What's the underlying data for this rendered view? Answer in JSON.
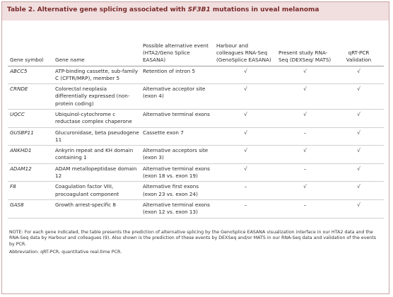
{
  "table_title_prefix": "Table 2.  Alternative gene splicing associated with ",
  "table_title_gene": "SF3B1",
  "table_title_suffix": " mutations in uveal melanoma",
  "headers": {
    "gene_symbol": "Gene symbol",
    "gene_name": "Gene name",
    "possible_event": "Possible alternative event (HTA2/Geno Splice EASANA)",
    "harbour": "Harbour and colleagues RNA-Seq (GenoSplice EASANA)",
    "present": "Present study RNA-Seq (DEXSeq/ MATS)",
    "qrt": "qRT-PCR Validation"
  },
  "rows": [
    {
      "symbol": "ABCC5",
      "name": "ATP-binding cassette, sub-family C (CFTR/MRP), member 5",
      "event": "Retention of intron 5",
      "harbour": "√",
      "present": "√",
      "qrt": "√"
    },
    {
      "symbol": "CRNDE",
      "name": "Colorectal neoplasia differentially expressed (non-protein coding)",
      "event": "Alternative acceptor site (exon 4)",
      "harbour": "√",
      "present": "√",
      "qrt": "√"
    },
    {
      "symbol": "UQCC",
      "name": "Ubiquinol-cytochrome c reductase complex chaperone",
      "event": "Alternative terminal exons",
      "harbour": "√",
      "present": "√",
      "qrt": "√"
    },
    {
      "symbol": "GUSBP11",
      "name": "Glucuronidase, beta pseudogene 11",
      "event": "Cassette exon 7",
      "harbour": "√",
      "present": "–",
      "qrt": "√"
    },
    {
      "symbol": "ANKHD1",
      "name": "Ankyrin repeat and KH domain containing 1",
      "event": "Alternative acceptors site (exon 3)",
      "harbour": "√",
      "present": "√",
      "qrt": "√"
    },
    {
      "symbol": "ADAM12",
      "name": "ADAM metallopeptidase domain 12",
      "event": "Alternative terminal exons (exon 18 vs. exon 19)",
      "harbour": "√",
      "present": "–",
      "qrt": "√"
    },
    {
      "symbol": "F8",
      "name": "Coagulation factor VIII, procoagulant component",
      "event": "Alternative first exons (exon 23 vs. exon 24)",
      "harbour": "–",
      "present": "√",
      "qrt": "√"
    },
    {
      "symbol": "GAS8",
      "name": "Growth arrest-specific 8",
      "event": "Alternative terminal exons (exon 12 vs. exon 13)",
      "harbour": "–",
      "present": "–",
      "qrt": "√"
    }
  ],
  "note": "NOTE: For each gene indicated, the table presents the prediction of alternative splicing by the GenoSplice EASANA visualization interface in our HTA2 data and the RNA-Seq data by Harbour and colleagues (9). Also shown is the prediction of these events by DEXSeq and/or MATS in our RNA-Seq data and validation of the events by PCR.",
  "abbreviation": "Abbreviation: qRT-PCR, quantitative real-time PCR.",
  "colors": {
    "title_bg": "#f1dede",
    "title_text": "#7a2a2a",
    "frame": "#c9a3a3"
  }
}
